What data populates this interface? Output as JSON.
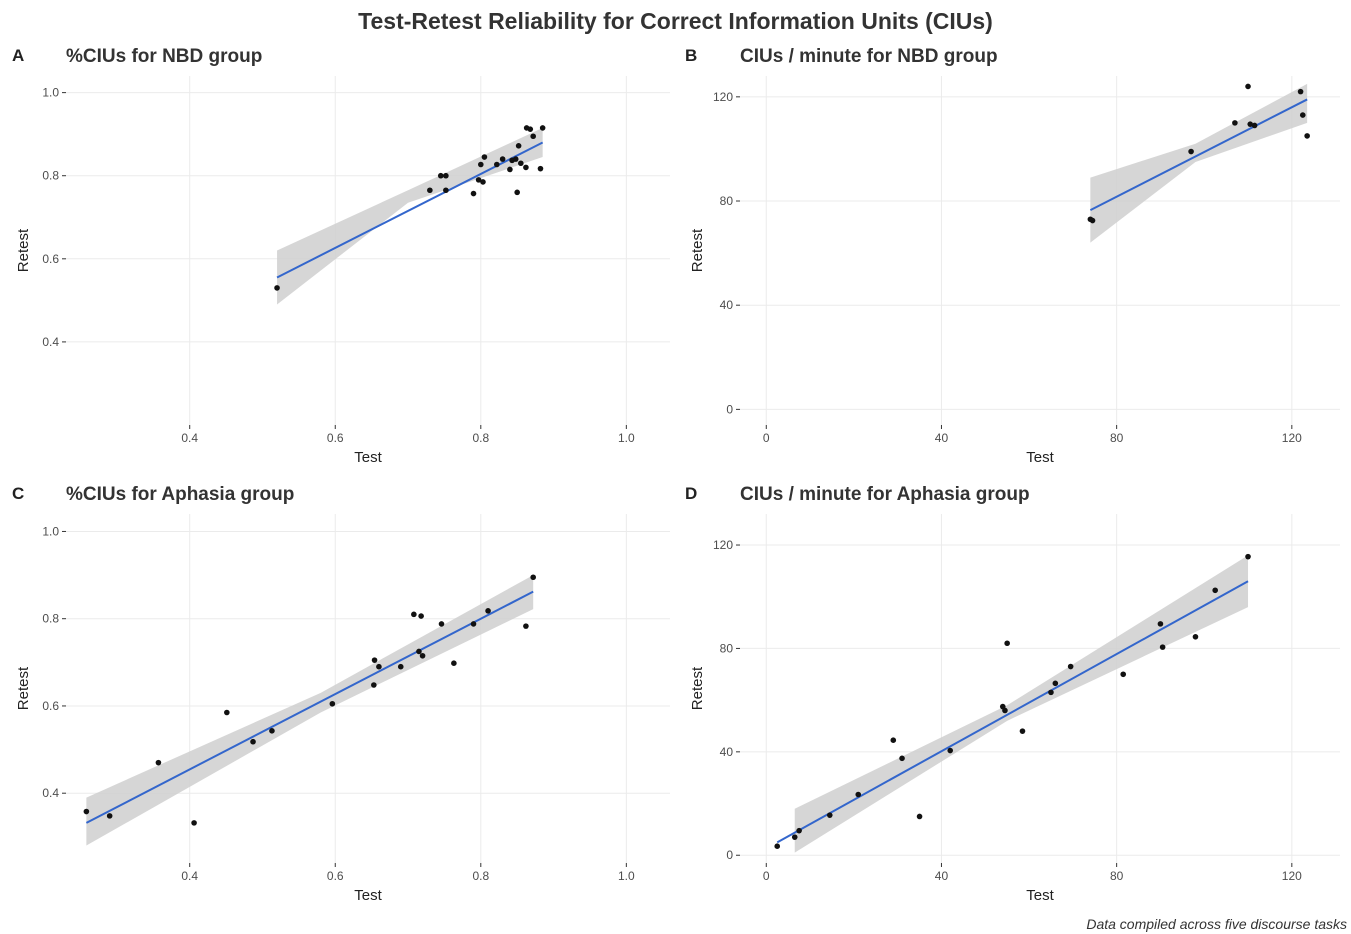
{
  "title": "Test-Retest Reliability for Correct Information Units (CIUs)",
  "caption": "Data compiled across five discourse tasks",
  "colors": {
    "line": "#3366cc",
    "band": "#cfcfcf",
    "point": "#111111",
    "grid": "#ebebeb"
  },
  "chart_data": [
    {
      "letter": "A",
      "type": "scatter",
      "title": "%CIUs for NBD group",
      "xlabel": "Test",
      "ylabel": "Retest",
      "xlim": [
        0.23,
        1.06
      ],
      "ylim": [
        0.2,
        1.04
      ],
      "xticks": [
        0.4,
        0.6,
        0.8,
        1.0
      ],
      "xtick_labels": [
        "0.4",
        "0.6",
        "0.8",
        "1.0"
      ],
      "yticks": [
        0.4,
        0.6,
        0.8,
        1.0
      ],
      "ytick_labels": [
        "0.4",
        "0.6",
        "0.8",
        "1.0"
      ],
      "fit": {
        "x": [
          0.52,
          0.885
        ],
        "y": [
          0.555,
          0.88
        ]
      },
      "band": [
        [
          0.52,
          0.49,
          0.62
        ],
        [
          0.7,
          0.735,
          0.765
        ],
        [
          0.885,
          0.845,
          0.915
        ]
      ],
      "points": [
        [
          0.52,
          0.53
        ],
        [
          0.73,
          0.765
        ],
        [
          0.745,
          0.8
        ],
        [
          0.752,
          0.8
        ],
        [
          0.752,
          0.765
        ],
        [
          0.79,
          0.757
        ],
        [
          0.797,
          0.79
        ],
        [
          0.8,
          0.827
        ],
        [
          0.803,
          0.785
        ],
        [
          0.805,
          0.845
        ],
        [
          0.822,
          0.827
        ],
        [
          0.83,
          0.84
        ],
        [
          0.84,
          0.815
        ],
        [
          0.843,
          0.837
        ],
        [
          0.848,
          0.84
        ],
        [
          0.85,
          0.76
        ],
        [
          0.852,
          0.872
        ],
        [
          0.855,
          0.83
        ],
        [
          0.862,
          0.82
        ],
        [
          0.863,
          0.915
        ],
        [
          0.868,
          0.912
        ],
        [
          0.872,
          0.895
        ],
        [
          0.882,
          0.817
        ],
        [
          0.885,
          0.915
        ]
      ]
    },
    {
      "letter": "B",
      "type": "scatter",
      "title": "CIUs / minute for NBD group",
      "xlabel": "Test",
      "ylabel": "Retest",
      "xlim": [
        -6,
        131
      ],
      "ylim": [
        -6,
        128
      ],
      "xticks": [
        0,
        40,
        80,
        120
      ],
      "xtick_labels": [
        "0",
        "40",
        "80",
        "120"
      ],
      "yticks": [
        0,
        40,
        80,
        120
      ],
      "ytick_labels": [
        "0",
        "40",
        "80",
        "120"
      ],
      "fit": {
        "x": [
          74,
          123.5
        ],
        "y": [
          76.5,
          119
        ]
      },
      "band": [
        [
          74,
          64,
          89
        ],
        [
          98,
          95,
          102
        ],
        [
          123.5,
          110,
          125
        ]
      ],
      "points": [
        [
          74,
          73
        ],
        [
          74.5,
          72.5
        ],
        [
          97,
          99
        ],
        [
          107,
          110
        ],
        [
          110,
          124
        ],
        [
          110.5,
          109.5
        ],
        [
          111.5,
          109
        ],
        [
          122,
          122
        ],
        [
          122.5,
          113
        ],
        [
          123.5,
          105
        ]
      ]
    },
    {
      "letter": "C",
      "type": "scatter",
      "title": "%CIUs  for Aphasia group",
      "xlabel": "Test",
      "ylabel": "Retest",
      "xlim": [
        0.23,
        1.06
      ],
      "ylim": [
        0.24,
        1.04
      ],
      "xticks": [
        0.4,
        0.6,
        0.8,
        1.0
      ],
      "xtick_labels": [
        "0.4",
        "0.6",
        "0.8",
        "1.0"
      ],
      "yticks": [
        0.4,
        0.6,
        0.8,
        1.0
      ],
      "ytick_labels": [
        "0.4",
        "0.6",
        "0.8",
        "1.0"
      ],
      "fit": {
        "x": [
          0.258,
          0.872
        ],
        "y": [
          0.332,
          0.862
        ]
      },
      "band": [
        [
          0.258,
          0.28,
          0.39
        ],
        [
          0.58,
          0.585,
          0.63
        ],
        [
          0.872,
          0.822,
          0.9
        ]
      ],
      "points": [
        [
          0.258,
          0.358
        ],
        [
          0.29,
          0.348
        ],
        [
          0.357,
          0.47
        ],
        [
          0.406,
          0.332
        ],
        [
          0.451,
          0.585
        ],
        [
          0.487,
          0.518
        ],
        [
          0.513,
          0.543
        ],
        [
          0.596,
          0.605
        ],
        [
          0.653,
          0.648
        ],
        [
          0.654,
          0.705
        ],
        [
          0.66,
          0.69
        ],
        [
          0.69,
          0.69
        ],
        [
          0.708,
          0.81
        ],
        [
          0.715,
          0.725
        ],
        [
          0.718,
          0.806
        ],
        [
          0.72,
          0.715
        ],
        [
          0.746,
          0.788
        ],
        [
          0.763,
          0.698
        ],
        [
          0.79,
          0.788
        ],
        [
          0.81,
          0.818
        ],
        [
          0.862,
          0.783
        ],
        [
          0.872,
          0.895
        ]
      ]
    },
    {
      "letter": "D",
      "type": "scatter",
      "title": "CIUs / minute for Aphasia group",
      "xlabel": "Test",
      "ylabel": "Retest",
      "xlim": [
        -6,
        131
      ],
      "ylim": [
        -3,
        132
      ],
      "xticks": [
        0,
        40,
        80,
        120
      ],
      "xtick_labels": [
        "0",
        "40",
        "80",
        "120"
      ],
      "yticks": [
        0,
        40,
        80,
        120
      ],
      "ytick_labels": [
        "0",
        "40",
        "80",
        "120"
      ],
      "fit": {
        "x": [
          2.5,
          110
        ],
        "y": [
          5,
          106
        ]
      },
      "band": [
        [
          6.5,
          1,
          18
        ],
        [
          55,
          52,
          58
        ],
        [
          110,
          96,
          116
        ]
      ],
      "points": [
        [
          2.5,
          3.5
        ],
        [
          6.5,
          7
        ],
        [
          7.5,
          9.5
        ],
        [
          14.5,
          15.5
        ],
        [
          21,
          23.5
        ],
        [
          29,
          44.5
        ],
        [
          31,
          37.5
        ],
        [
          35,
          15
        ],
        [
          42,
          40.5
        ],
        [
          54,
          57.5
        ],
        [
          54.5,
          56
        ],
        [
          55,
          82
        ],
        [
          58.5,
          48
        ],
        [
          65,
          63
        ],
        [
          66,
          66.5
        ],
        [
          69.5,
          73
        ],
        [
          81.5,
          70
        ],
        [
          90,
          89.5
        ],
        [
          90.5,
          80.5
        ],
        [
          98,
          84.5
        ],
        [
          102.5,
          102.5
        ],
        [
          110,
          115.5
        ]
      ]
    }
  ]
}
